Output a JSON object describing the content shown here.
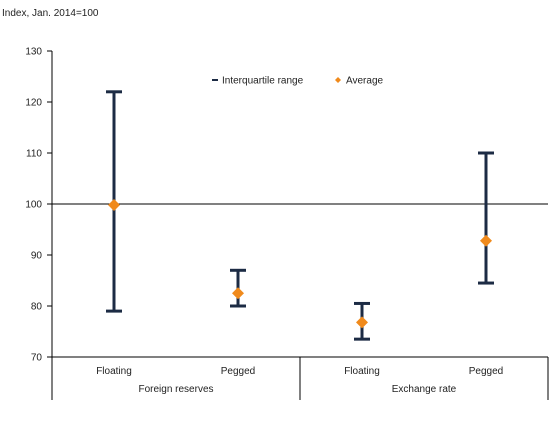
{
  "chart_data": {
    "type": "errorbar",
    "unit_label": "Index, Jan. 2014=100",
    "ylim": [
      70,
      130
    ],
    "yticks": [
      70,
      80,
      90,
      100,
      110,
      120,
      130
    ],
    "reference_line": 100,
    "groups": [
      {
        "label": "Foreign reserves",
        "categories": [
          "Floating",
          "Pegged"
        ]
      },
      {
        "label": "Exchange rate",
        "categories": [
          "Floating",
          "Pegged"
        ]
      }
    ],
    "series": [
      {
        "name": "Interquartile range",
        "kind": "range",
        "color": "#1c2b44",
        "low": [
          79,
          80,
          73.5,
          84.5
        ],
        "high": [
          122,
          87,
          80.5,
          110
        ]
      },
      {
        "name": "Average",
        "kind": "point",
        "color": "#f08a1c",
        "values": [
          99.8,
          82.5,
          76.8,
          92.8
        ]
      }
    ],
    "legend": {
      "position": "top-center"
    },
    "grid": false
  }
}
